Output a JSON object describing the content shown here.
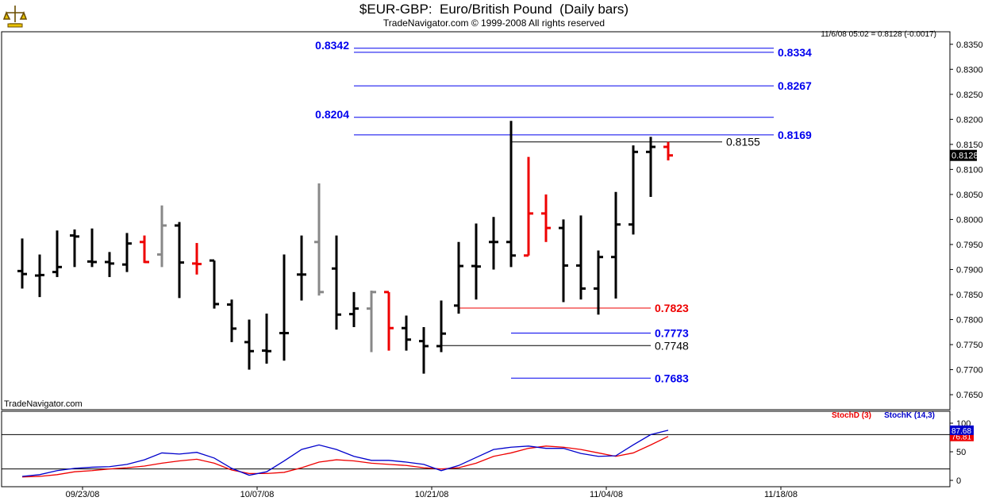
{
  "header": {
    "title": "$EUR-GBP:  Euro/British Pound  (Daily bars)",
    "copyright": "TradeNavigator.com © 1999-2008 All rights reserved",
    "last_quote": "11/6/08 05:02 = 0.8128 (-0.0017)",
    "watermark": "TradeNavigator.com"
  },
  "colors": {
    "up": "#000000",
    "down": "#ee0000",
    "gray": "#888888",
    "level_blue": "#0000ee",
    "stoch_d": "#ee0000",
    "stoch_k": "#0000cc"
  },
  "chart_data": [
    {
      "type": "ohlc",
      "ylim": [
        0.762,
        0.8375
      ],
      "y_ticks": [
        "0.7650",
        "0.7700",
        "0.7750",
        "0.7800",
        "0.7850",
        "0.7900",
        "0.7950",
        "0.8000",
        "0.8050",
        "0.8100",
        "0.8150",
        "0.8200",
        "0.8250",
        "0.8300",
        "0.8350"
      ],
      "x_ticks": [
        "09/23/08",
        "10/07/08",
        "10/21/08",
        "11/04/08",
        "11/18/08"
      ],
      "last_price_label": "0.8128",
      "bars": [
        {
          "o": 0.7897,
          "h": 0.7962,
          "l": 0.7862,
          "c": 0.7891,
          "color": "up"
        },
        {
          "o": 0.7888,
          "h": 0.793,
          "l": 0.7845,
          "c": 0.7889,
          "color": "up"
        },
        {
          "o": 0.7895,
          "h": 0.7978,
          "l": 0.7885,
          "c": 0.7905,
          "color": "up"
        },
        {
          "o": 0.7968,
          "h": 0.798,
          "l": 0.7905,
          "c": 0.7966,
          "color": "up"
        },
        {
          "o": 0.7916,
          "h": 0.7982,
          "l": 0.7905,
          "c": 0.7915,
          "color": "up"
        },
        {
          "o": 0.7915,
          "h": 0.7935,
          "l": 0.7885,
          "c": 0.7912,
          "color": "up"
        },
        {
          "o": 0.791,
          "h": 0.7973,
          "l": 0.7895,
          "c": 0.7952,
          "color": "up"
        },
        {
          "o": 0.7955,
          "h": 0.7968,
          "l": 0.7913,
          "c": 0.7915,
          "color": "down"
        },
        {
          "o": 0.793,
          "h": 0.8028,
          "l": 0.7905,
          "c": 0.7988,
          "color": "gray"
        },
        {
          "o": 0.7988,
          "h": 0.7995,
          "l": 0.7843,
          "c": 0.7914,
          "color": "up"
        },
        {
          "o": 0.7912,
          "h": 0.7953,
          "l": 0.789,
          "c": 0.7911,
          "color": "down"
        },
        {
          "o": 0.7918,
          "h": 0.7918,
          "l": 0.7822,
          "c": 0.7831,
          "color": "up"
        },
        {
          "o": 0.783,
          "h": 0.784,
          "l": 0.7755,
          "c": 0.7782,
          "color": "up"
        },
        {
          "o": 0.7755,
          "h": 0.78,
          "l": 0.77,
          "c": 0.7737,
          "color": "up"
        },
        {
          "o": 0.7738,
          "h": 0.7812,
          "l": 0.7712,
          "c": 0.7737,
          "color": "up"
        },
        {
          "o": 0.7773,
          "h": 0.793,
          "l": 0.7718,
          "c": 0.7773,
          "color": "up"
        },
        {
          "o": 0.789,
          "h": 0.7968,
          "l": 0.7838,
          "c": 0.789,
          "color": "up"
        },
        {
          "o": 0.7955,
          "h": 0.8072,
          "l": 0.7848,
          "c": 0.7855,
          "color": "gray"
        },
        {
          "o": 0.7902,
          "h": 0.7968,
          "l": 0.778,
          "c": 0.781,
          "color": "up"
        },
        {
          "o": 0.7811,
          "h": 0.7855,
          "l": 0.7785,
          "c": 0.7822,
          "color": "up"
        },
        {
          "o": 0.7822,
          "h": 0.7858,
          "l": 0.7735,
          "c": 0.7855,
          "color": "gray"
        },
        {
          "o": 0.7855,
          "h": 0.7855,
          "l": 0.7738,
          "c": 0.7783,
          "color": "down"
        },
        {
          "o": 0.7783,
          "h": 0.7808,
          "l": 0.7738,
          "c": 0.776,
          "color": "up"
        },
        {
          "o": 0.7757,
          "h": 0.7785,
          "l": 0.7692,
          "c": 0.7747,
          "color": "up"
        },
        {
          "o": 0.7747,
          "h": 0.7838,
          "l": 0.7735,
          "c": 0.7772,
          "color": "up"
        },
        {
          "o": 0.7828,
          "h": 0.7955,
          "l": 0.7812,
          "c": 0.7907,
          "color": "up"
        },
        {
          "o": 0.7907,
          "h": 0.7992,
          "l": 0.784,
          "c": 0.7906,
          "color": "up"
        },
        {
          "o": 0.7955,
          "h": 0.8005,
          "l": 0.79,
          "c": 0.7955,
          "color": "up"
        },
        {
          "o": 0.7955,
          "h": 0.8197,
          "l": 0.7905,
          "c": 0.7928,
          "color": "up"
        },
        {
          "o": 0.7928,
          "h": 0.8125,
          "l": 0.7928,
          "c": 0.8012,
          "color": "down"
        },
        {
          "o": 0.8012,
          "h": 0.805,
          "l": 0.7955,
          "c": 0.7983,
          "color": "down"
        },
        {
          "o": 0.7983,
          "h": 0.8,
          "l": 0.7835,
          "c": 0.7908,
          "color": "up"
        },
        {
          "o": 0.7908,
          "h": 0.8008,
          "l": 0.784,
          "c": 0.7862,
          "color": "up"
        },
        {
          "o": 0.7862,
          "h": 0.7938,
          "l": 0.781,
          "c": 0.7925,
          "color": "up"
        },
        {
          "o": 0.7925,
          "h": 0.8055,
          "l": 0.7842,
          "c": 0.799,
          "color": "up"
        },
        {
          "o": 0.799,
          "h": 0.8148,
          "l": 0.797,
          "c": 0.8135,
          "color": "up"
        },
        {
          "o": 0.8135,
          "h": 0.8165,
          "l": 0.8045,
          "c": 0.8145,
          "color": "up"
        },
        {
          "o": 0.8145,
          "h": 0.8155,
          "l": 0.8118,
          "c": 0.8128,
          "color": "down"
        }
      ],
      "levels": [
        {
          "value": 0.8334,
          "label": "0.8334",
          "color": "level_blue",
          "label_side": "right",
          "x0": 0,
          "x1": "r"
        },
        {
          "value": 0.8342,
          "label": "0.8342",
          "color": "level_blue",
          "label_side": "left",
          "x0": 0,
          "x1": "r"
        },
        {
          "value": 0.8267,
          "label": "0.8267",
          "color": "level_blue",
          "label_side": "right",
          "x0": 0,
          "x1": "r"
        },
        {
          "value": 0.8204,
          "label": "0.8204",
          "color": "level_blue",
          "label_side": "left",
          "x0": 0,
          "x1": "r"
        },
        {
          "value": 0.8169,
          "label": "0.8169",
          "color": "level_blue",
          "label_side": "right",
          "x0": 0,
          "x1": "r"
        },
        {
          "value": 0.8155,
          "label": "0.8155",
          "color": "up",
          "label_side": "right",
          "x0": 28,
          "x1": "n"
        },
        {
          "value": 0.7823,
          "label": "0.7823",
          "color": "down",
          "label_side": "right",
          "x0": 25,
          "x1": "m"
        },
        {
          "value": 0.7773,
          "label": "0.7773",
          "color": "level_blue",
          "label_side": "right",
          "x0": 28,
          "x1": "m"
        },
        {
          "value": 0.7748,
          "label": "0.7748",
          "color": "up",
          "label_side": "right",
          "x0": 24,
          "x1": "m"
        },
        {
          "value": 0.7683,
          "label": "0.7683",
          "color": "level_blue",
          "label_side": "right",
          "x0": 28,
          "x1": "m"
        }
      ]
    },
    {
      "type": "line",
      "title": "StochD (3)  StochK (14,3)",
      "ylim": [
        0,
        100
      ],
      "y_ticks": [
        "100",
        "50",
        "0"
      ],
      "reference_lines": [
        80,
        20
      ],
      "series": [
        {
          "name": "StochD (3)",
          "color": "stoch_d",
          "last": "76.81",
          "values": [
            6,
            7,
            10,
            15,
            17,
            20,
            22,
            25,
            30,
            34,
            37,
            30,
            18,
            12,
            12,
            14,
            22,
            32,
            36,
            34,
            30,
            28,
            26,
            22,
            20,
            22,
            30,
            42,
            48,
            56,
            60,
            58,
            54,
            48,
            42,
            48,
            62,
            76.81
          ]
        },
        {
          "name": "StochK (14,3)",
          "color": "stoch_k",
          "last": "87.68",
          "values": [
            7,
            10,
            17,
            21,
            23,
            24,
            28,
            36,
            48,
            46,
            49,
            39,
            21,
            9,
            15,
            34,
            54,
            62,
            54,
            42,
            35,
            35,
            32,
            28,
            17,
            26,
            40,
            54,
            58,
            60,
            56,
            56,
            47,
            42,
            43,
            62,
            80,
            87.68
          ]
        }
      ]
    }
  ]
}
